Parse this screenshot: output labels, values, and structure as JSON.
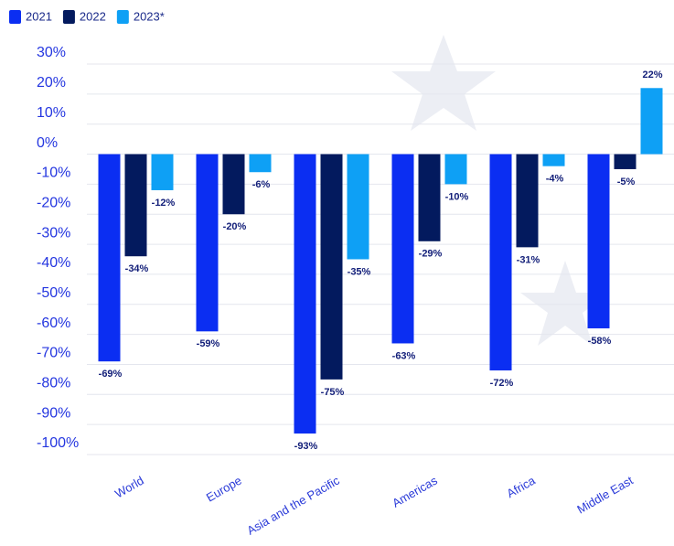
{
  "chart_data": {
    "type": "bar",
    "categories": [
      "World",
      "Europe",
      "Asia and the Pacific",
      "Americas",
      "Africa",
      "Middle East"
    ],
    "series": [
      {
        "name": "2021",
        "color": "#0b2ef2",
        "values": [
          -69,
          -59,
          -93,
          -63,
          -72,
          -58
        ],
        "value_labels": [
          "-69%",
          "-59%",
          "-93%",
          "-63%",
          "-72%",
          "-58%"
        ]
      },
      {
        "name": "2022",
        "color": "#031a5e",
        "values": [
          -34,
          -20,
          -75,
          -29,
          -31,
          -5
        ],
        "value_labels": [
          "-34%",
          "-20%",
          "-75%",
          "-29%",
          "-31%",
          "-5%"
        ]
      },
      {
        "name": "2023*",
        "color": "#0ea0f5",
        "values": [
          -12,
          -6,
          -35,
          -10,
          -4,
          22
        ],
        "value_labels": [
          "-12%",
          "-6%",
          "-35%",
          "-10%",
          "-4%",
          "22%"
        ]
      }
    ],
    "ylim": [
      -100,
      30
    ],
    "yticks": [
      {
        "value": 30,
        "label": "30%"
      },
      {
        "value": 20,
        "label": "20%"
      },
      {
        "value": 10,
        "label": "10%"
      },
      {
        "value": 0,
        "label": "0%"
      },
      {
        "value": -10,
        "label": "-10%"
      },
      {
        "value": -20,
        "label": "-20%"
      },
      {
        "value": -30,
        "label": "-30%"
      },
      {
        "value": -40,
        "label": "-40%"
      },
      {
        "value": -50,
        "label": "-50%"
      },
      {
        "value": -60,
        "label": "-60%"
      },
      {
        "value": -70,
        "label": "-70%"
      },
      {
        "value": -80,
        "label": "-80%"
      },
      {
        "value": -90,
        "label": "-90%"
      },
      {
        "value": -100,
        "label": "-100%"
      }
    ],
    "grid": true,
    "legend": "top-left"
  }
}
